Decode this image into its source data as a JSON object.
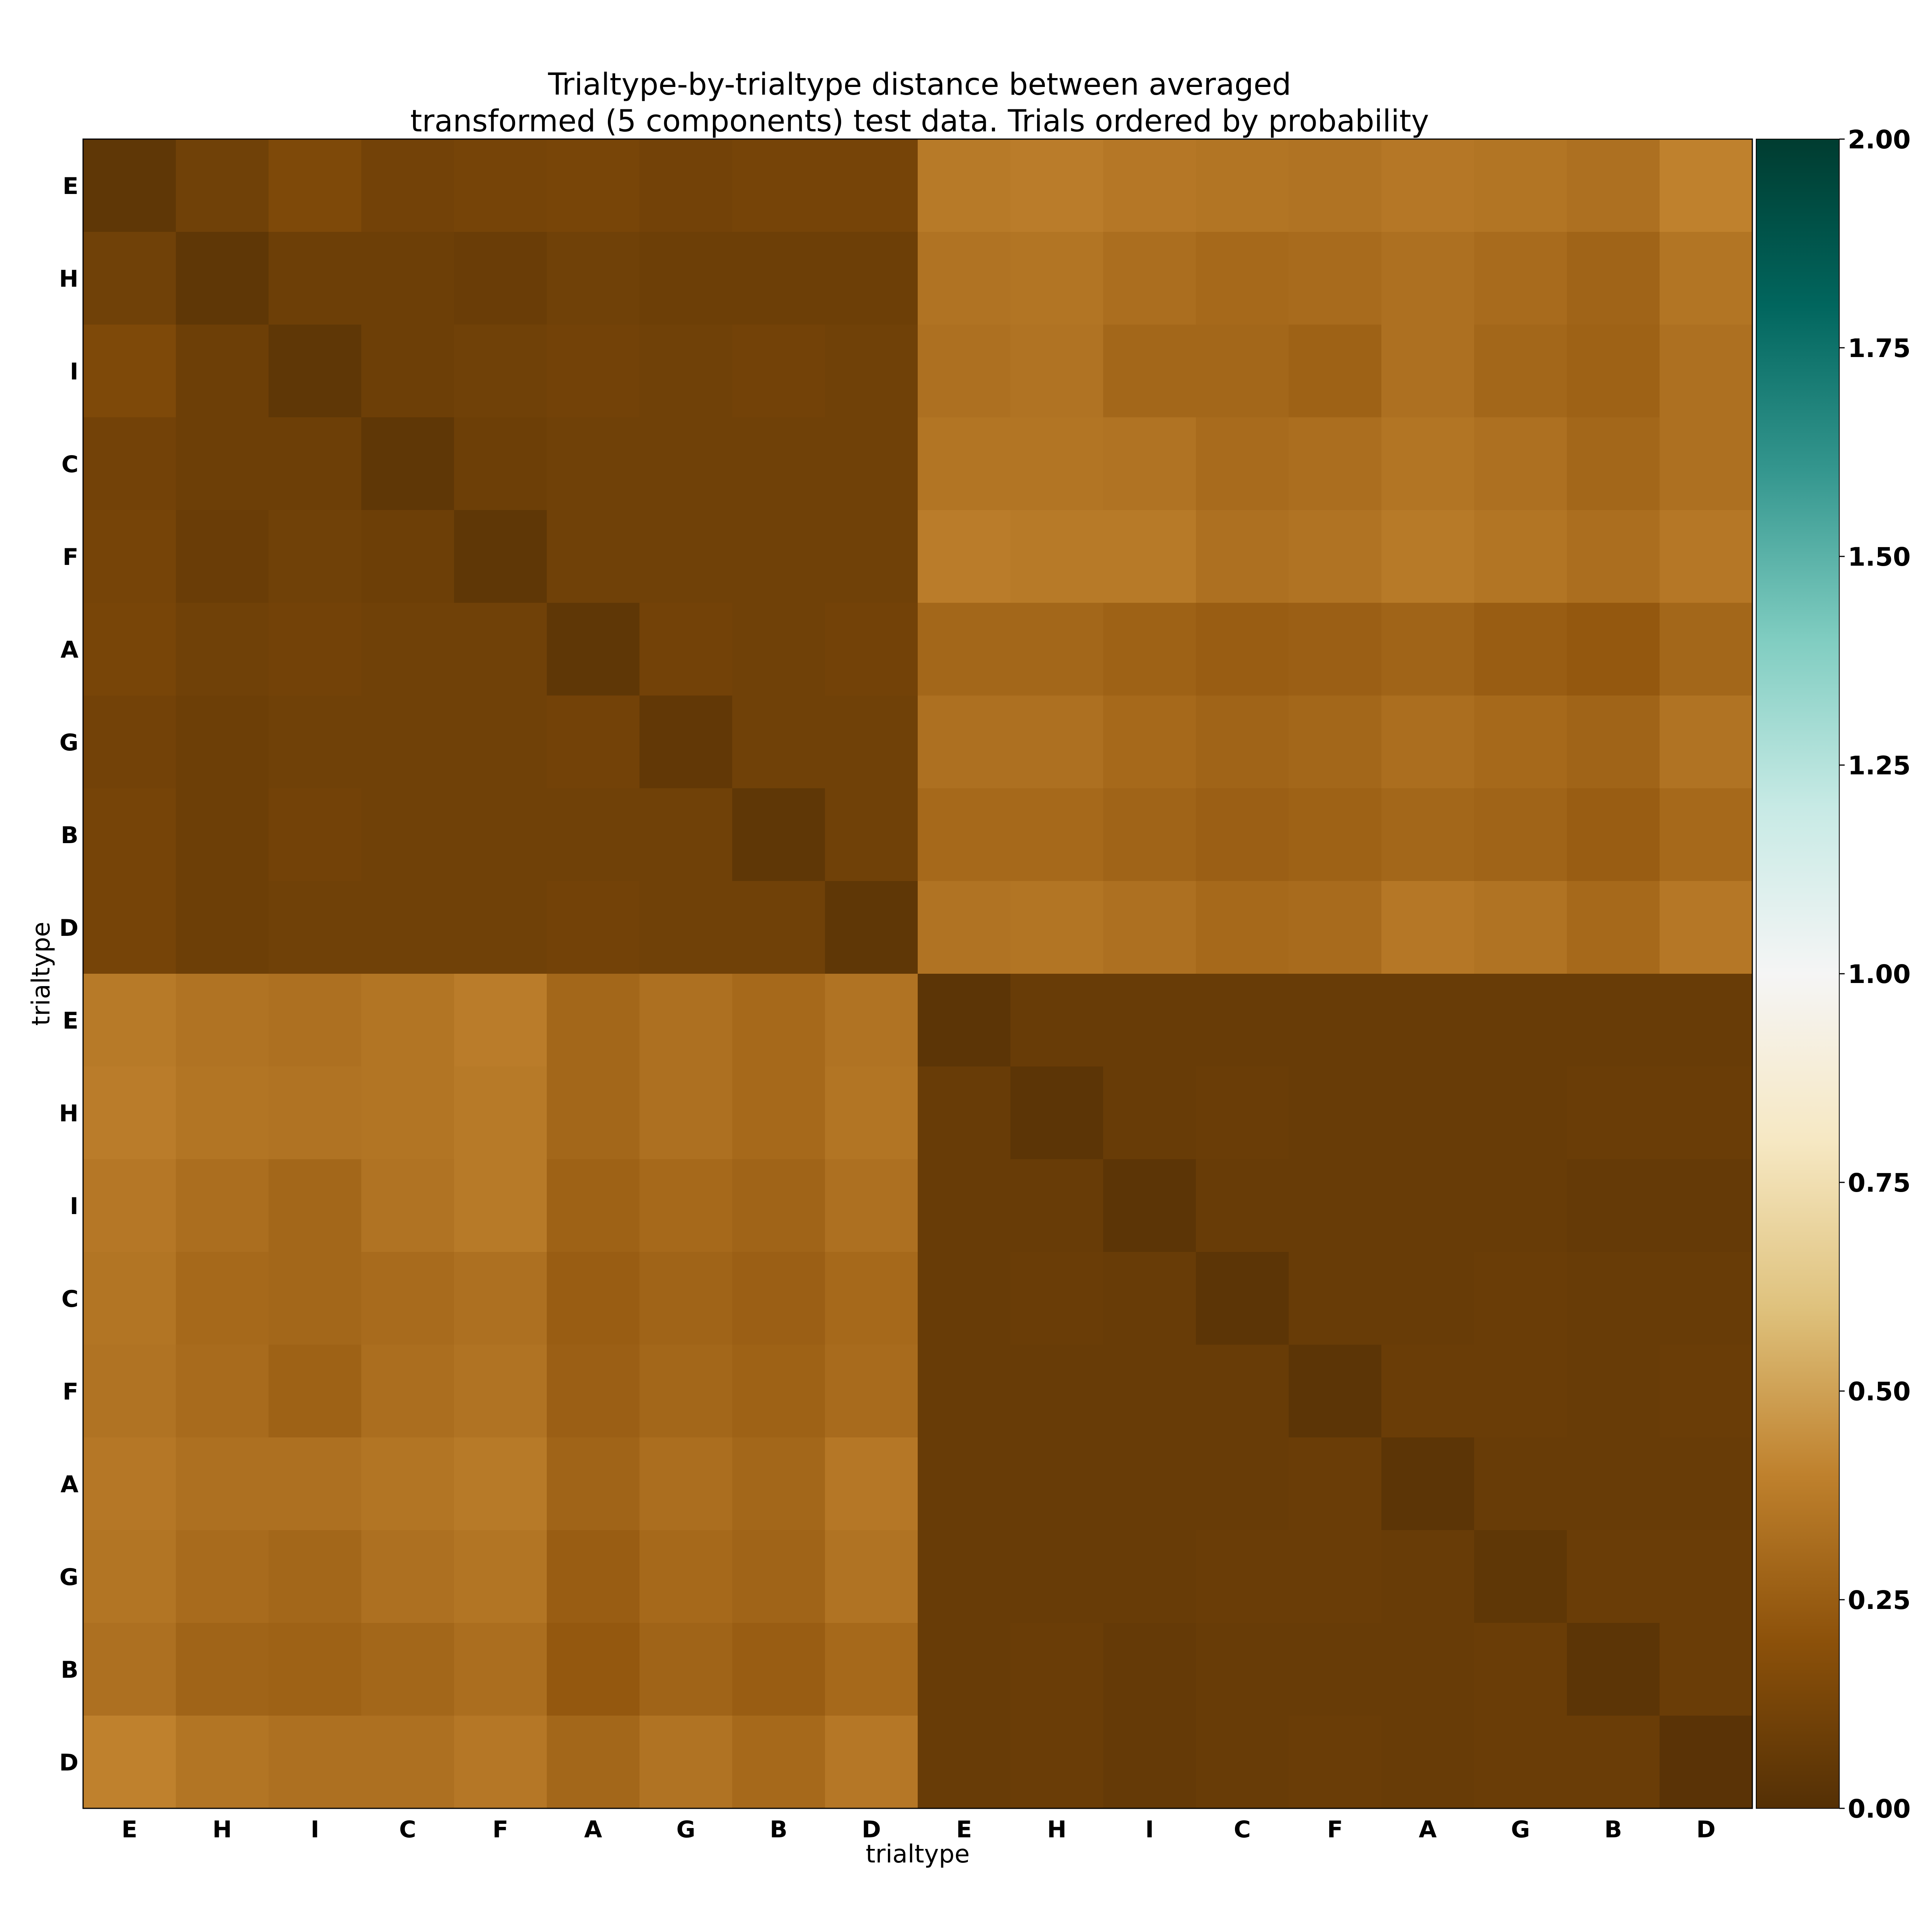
{
  "chart_data": {
    "type": "heatmap",
    "title_line1": "Trialtype-by-trialtype distance between averaged",
    "title_line2": "transformed (5 components) test data. Trials ordered by probability",
    "xlabel": "trialtype",
    "ylabel": "trialtype",
    "x_categories": [
      "E",
      "H",
      "I",
      "C",
      "F",
      "A",
      "G",
      "B",
      "D",
      "E",
      "H",
      "I",
      "C",
      "F",
      "A",
      "G",
      "B",
      "D"
    ],
    "y_categories": [
      "E",
      "H",
      "I",
      "C",
      "F",
      "A",
      "G",
      "B",
      "D",
      "E",
      "H",
      "I",
      "C",
      "F",
      "A",
      "G",
      "B",
      "D"
    ],
    "colorbar": {
      "colormap": "BrBG",
      "vmin": 0.0,
      "vmax": 2.0,
      "ticks": [
        "0.00",
        "0.25",
        "0.50",
        "0.75",
        "1.00",
        "1.25",
        "1.50",
        "1.75",
        "2.00"
      ]
    },
    "values": [
      [
        0.04,
        0.1,
        0.15,
        0.11,
        0.12,
        0.13,
        0.11,
        0.12,
        0.12,
        0.37,
        0.38,
        0.36,
        0.35,
        0.34,
        0.36,
        0.35,
        0.33,
        0.4
      ],
      [
        0.1,
        0.04,
        0.09,
        0.09,
        0.08,
        0.1,
        0.09,
        0.09,
        0.09,
        0.34,
        0.35,
        0.32,
        0.3,
        0.31,
        0.33,
        0.31,
        0.28,
        0.35
      ],
      [
        0.15,
        0.09,
        0.04,
        0.09,
        0.1,
        0.11,
        0.1,
        0.11,
        0.1,
        0.33,
        0.34,
        0.29,
        0.29,
        0.27,
        0.33,
        0.29,
        0.27,
        0.33
      ],
      [
        0.11,
        0.09,
        0.09,
        0.04,
        0.09,
        0.1,
        0.1,
        0.1,
        0.1,
        0.35,
        0.35,
        0.34,
        0.31,
        0.32,
        0.35,
        0.33,
        0.29,
        0.33
      ],
      [
        0.12,
        0.08,
        0.1,
        0.09,
        0.04,
        0.1,
        0.1,
        0.1,
        0.1,
        0.38,
        0.37,
        0.37,
        0.33,
        0.34,
        0.37,
        0.35,
        0.32,
        0.36
      ],
      [
        0.13,
        0.1,
        0.11,
        0.1,
        0.1,
        0.04,
        0.11,
        0.1,
        0.11,
        0.29,
        0.29,
        0.27,
        0.25,
        0.26,
        0.28,
        0.25,
        0.23,
        0.29
      ],
      [
        0.11,
        0.09,
        0.1,
        0.1,
        0.1,
        0.11,
        0.05,
        0.1,
        0.1,
        0.33,
        0.33,
        0.3,
        0.28,
        0.29,
        0.32,
        0.3,
        0.28,
        0.34
      ],
      [
        0.12,
        0.09,
        0.11,
        0.1,
        0.1,
        0.1,
        0.1,
        0.04,
        0.1,
        0.3,
        0.3,
        0.28,
        0.26,
        0.27,
        0.29,
        0.28,
        0.25,
        0.3
      ],
      [
        0.12,
        0.09,
        0.1,
        0.1,
        0.1,
        0.11,
        0.1,
        0.1,
        0.04,
        0.34,
        0.35,
        0.33,
        0.3,
        0.31,
        0.36,
        0.34,
        0.3,
        0.36
      ],
      [
        0.37,
        0.34,
        0.33,
        0.35,
        0.38,
        0.29,
        0.33,
        0.3,
        0.34,
        0.03,
        0.07,
        0.07,
        0.07,
        0.07,
        0.07,
        0.07,
        0.07,
        0.07
      ],
      [
        0.38,
        0.35,
        0.34,
        0.35,
        0.37,
        0.29,
        0.33,
        0.3,
        0.35,
        0.07,
        0.03,
        0.07,
        0.08,
        0.07,
        0.07,
        0.07,
        0.08,
        0.08
      ],
      [
        0.36,
        0.32,
        0.29,
        0.34,
        0.37,
        0.27,
        0.3,
        0.28,
        0.33,
        0.07,
        0.07,
        0.03,
        0.07,
        0.07,
        0.07,
        0.07,
        0.06,
        0.06
      ],
      [
        0.35,
        0.3,
        0.29,
        0.31,
        0.33,
        0.25,
        0.28,
        0.26,
        0.3,
        0.07,
        0.08,
        0.07,
        0.03,
        0.07,
        0.07,
        0.08,
        0.07,
        0.07
      ],
      [
        0.34,
        0.31,
        0.27,
        0.32,
        0.34,
        0.26,
        0.29,
        0.27,
        0.31,
        0.07,
        0.07,
        0.07,
        0.07,
        0.03,
        0.08,
        0.08,
        0.07,
        0.08
      ],
      [
        0.36,
        0.33,
        0.33,
        0.35,
        0.37,
        0.28,
        0.32,
        0.29,
        0.36,
        0.07,
        0.07,
        0.07,
        0.07,
        0.08,
        0.03,
        0.07,
        0.07,
        0.07
      ],
      [
        0.35,
        0.31,
        0.29,
        0.33,
        0.35,
        0.25,
        0.3,
        0.28,
        0.34,
        0.07,
        0.07,
        0.07,
        0.08,
        0.08,
        0.07,
        0.04,
        0.08,
        0.08
      ],
      [
        0.33,
        0.28,
        0.27,
        0.29,
        0.32,
        0.23,
        0.28,
        0.25,
        0.3,
        0.07,
        0.08,
        0.06,
        0.07,
        0.07,
        0.07,
        0.08,
        0.03,
        0.08
      ],
      [
        0.4,
        0.35,
        0.33,
        0.33,
        0.36,
        0.29,
        0.34,
        0.3,
        0.36,
        0.07,
        0.08,
        0.06,
        0.07,
        0.08,
        0.07,
        0.08,
        0.08,
        0.02
      ]
    ]
  }
}
